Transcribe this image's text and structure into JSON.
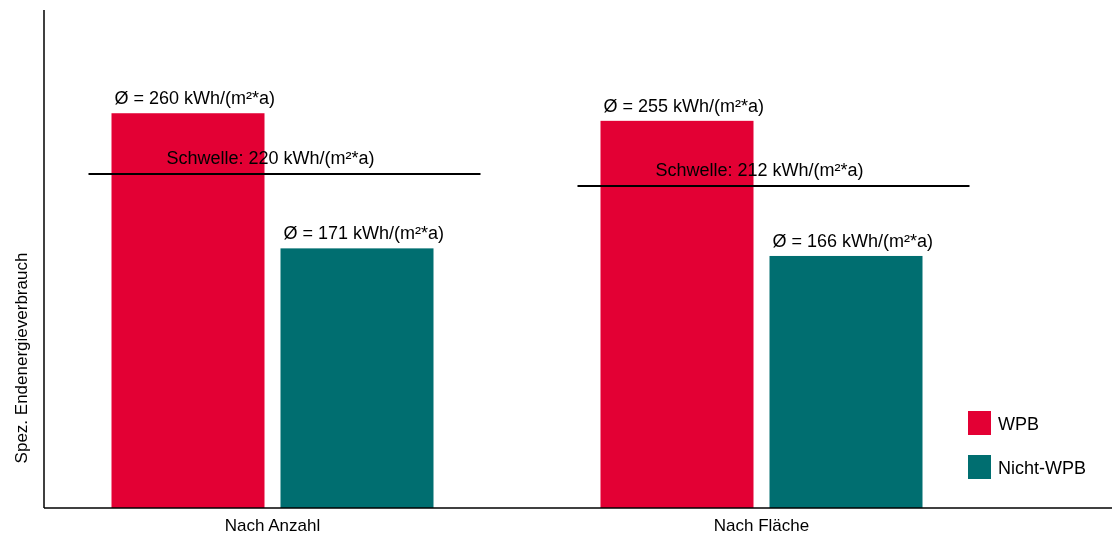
{
  "chart_data": {
    "type": "bar",
    "ylabel": "Spez. Endenergieverbrauch",
    "categories": [
      "Nach Anzahl",
      "Nach Fläche"
    ],
    "ylim": [
      0,
      328
    ],
    "series": [
      {
        "name": "WPB",
        "color": "#e30034",
        "values": [
          260,
          255
        ],
        "value_labels": [
          "Ø = 260 kWh/(m²*a)",
          "Ø = 255 kWh/(m²*a)"
        ]
      },
      {
        "name": "Nicht-WPB",
        "color": "#006e70",
        "values": [
          171,
          166
        ],
        "value_labels": [
          "Ø = 171 kWh/(m²*a)",
          "Ø = 166 kWh/(m²*a)"
        ]
      }
    ],
    "ref_lines": [
      {
        "axis": "y",
        "value": 220,
        "label": "Schwelle: 220 kWh/(m²*a)",
        "color": "#000000"
      },
      {
        "axis": "y",
        "value": 212,
        "label": "Schwelle: 212 kWh/(m²*a)",
        "color": "#000000"
      }
    ],
    "legend": "bottom right",
    "tick_labels": "x"
  }
}
